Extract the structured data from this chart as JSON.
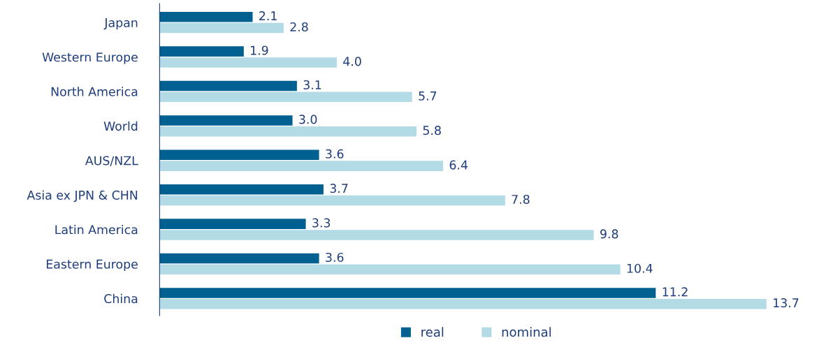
{
  "chart_data": {
    "type": "bar",
    "orientation": "horizontal",
    "categories": [
      "Japan",
      "Western Europe",
      "North America",
      "World",
      "AUS/NZL",
      "Asia ex JPN & CHN",
      "Latin America",
      "Eastern Europe",
      "China"
    ],
    "series": [
      {
        "name": "real",
        "color": "#00608f",
        "values": [
          2.1,
          1.9,
          3.1,
          3.0,
          3.6,
          3.7,
          3.3,
          3.6,
          11.2
        ],
        "value_labels": [
          "2.1",
          "1.9",
          "3.1",
          "3.0",
          "3.6",
          "3.7",
          "3.3",
          "3.6",
          "11.2"
        ]
      },
      {
        "name": "nominal",
        "color": "#b3dbe6",
        "values": [
          2.8,
          4.0,
          5.7,
          5.8,
          6.4,
          7.8,
          9.8,
          10.4,
          13.7
        ],
        "value_labels": [
          "2.8",
          "4.0",
          "5.7",
          "5.8",
          "6.4",
          "7.8",
          "9.8",
          "10.4",
          "13.7"
        ]
      }
    ],
    "legend": "bottom",
    "grid": false
  }
}
